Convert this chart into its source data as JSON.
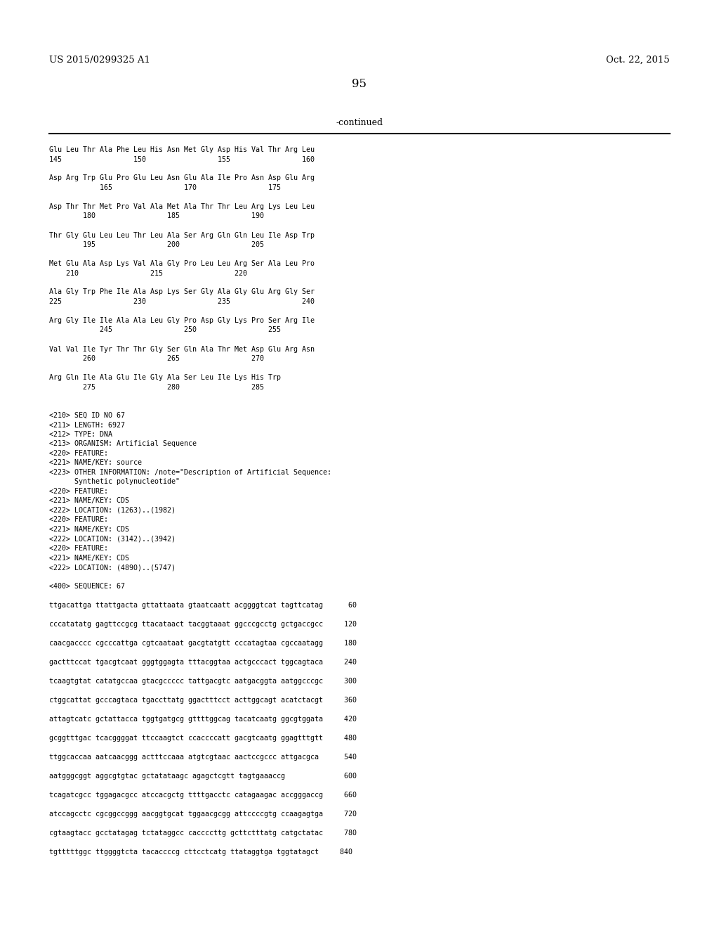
{
  "header_left": "US 2015/0299325 A1",
  "header_right": "Oct. 22, 2015",
  "page_number": "95",
  "continued_label": "-continued",
  "background_color": "#ffffff",
  "text_color": "#000000",
  "content_lines": [
    "Glu Leu Thr Ala Phe Leu His Asn Met Gly Asp His Val Thr Arg Leu",
    "145                 150                 155                 160",
    "",
    "Asp Arg Trp Glu Pro Glu Leu Asn Glu Ala Ile Pro Asn Asp Glu Arg",
    "            165                 170                 175",
    "",
    "Asp Thr Thr Met Pro Val Ala Met Ala Thr Thr Leu Arg Lys Leu Leu",
    "        180                 185                 190",
    "",
    "Thr Gly Glu Leu Leu Thr Leu Ala Ser Arg Gln Gln Leu Ile Asp Trp",
    "        195                 200                 205",
    "",
    "Met Glu Ala Asp Lys Val Ala Gly Pro Leu Leu Arg Ser Ala Leu Pro",
    "    210                 215                 220",
    "",
    "Ala Gly Trp Phe Ile Ala Asp Lys Ser Gly Ala Gly Glu Arg Gly Ser",
    "225                 230                 235                 240",
    "",
    "Arg Gly Ile Ile Ala Ala Leu Gly Pro Asp Gly Lys Pro Ser Arg Ile",
    "            245                 250                 255",
    "",
    "Val Val Ile Tyr Thr Thr Gly Ser Gln Ala Thr Met Asp Glu Arg Asn",
    "        260                 265                 270",
    "",
    "Arg Gln Ile Ala Glu Ile Gly Ala Ser Leu Ile Lys His Trp",
    "        275                 280                 285",
    "",
    "",
    "<210> SEQ ID NO 67",
    "<211> LENGTH: 6927",
    "<212> TYPE: DNA",
    "<213> ORGANISM: Artificial Sequence",
    "<220> FEATURE:",
    "<221> NAME/KEY: source",
    "<223> OTHER INFORMATION: /note=\"Description of Artificial Sequence:",
    "      Synthetic polynucleotide\"",
    "<220> FEATURE:",
    "<221> NAME/KEY: CDS",
    "<222> LOCATION: (1263)..(1982)",
    "<220> FEATURE:",
    "<221> NAME/KEY: CDS",
    "<222> LOCATION: (3142)..(3942)",
    "<220> FEATURE:",
    "<221> NAME/KEY: CDS",
    "<222> LOCATION: (4890)..(5747)",
    "",
    "<400> SEQUENCE: 67",
    "",
    "ttgacattga ttattgacta gttattaata gtaatcaatt acggggtcat tagttcatag      60",
    "",
    "cccatatatg gagttccgcg ttacataact tacggtaaat ggcccgcctg gctgaccgcc     120",
    "",
    "caacgacccc cgcccattga cgtcaataat gacgtatgtt cccatagtaa cgccaatagg     180",
    "",
    "gactttccat tgacgtcaat gggtggagta tttacggtaa actgcccact tggcagtaca     240",
    "",
    "tcaagtgtat catatgccaa gtacgccccc tattgacgtc aatgacggta aatggcccgc     300",
    "",
    "ctggcattat gcccagtaca tgaccttatg ggactttcct acttggcagt acatctacgt     360",
    "",
    "attagtcatc gctattacca tggtgatgcg gttttggcag tacatcaatg ggcgtggata     420",
    "",
    "gcggtttgac tcacggggat ttccaagtct ccaccccatt gacgtcaatg ggagtttgtt     480",
    "",
    "ttggcaccaa aatcaacggg actttccaaa atgtcgtaac aactccgccc attgacgca      540",
    "",
    "aatgggcggt aggcgtgtac gctatataagc agagctcgtt tagtgaaaccg              600",
    "",
    "tcagatcgcc tggagacgcc atccacgctg ttttgacctc catagaagac accgggaccg     660",
    "",
    "atccagcctc cgcggccggg aacggtgcat tggaacgcgg attccccgtg ccaagagtga     720",
    "",
    "cgtaagtacc gcctatagag tctataggcc caccccttg gcttctttatg catgctatac     780",
    "",
    "tgtttttggc ttggggtcta tacaccccg cttcctcatg ttataggtga tggtatagct     840"
  ]
}
